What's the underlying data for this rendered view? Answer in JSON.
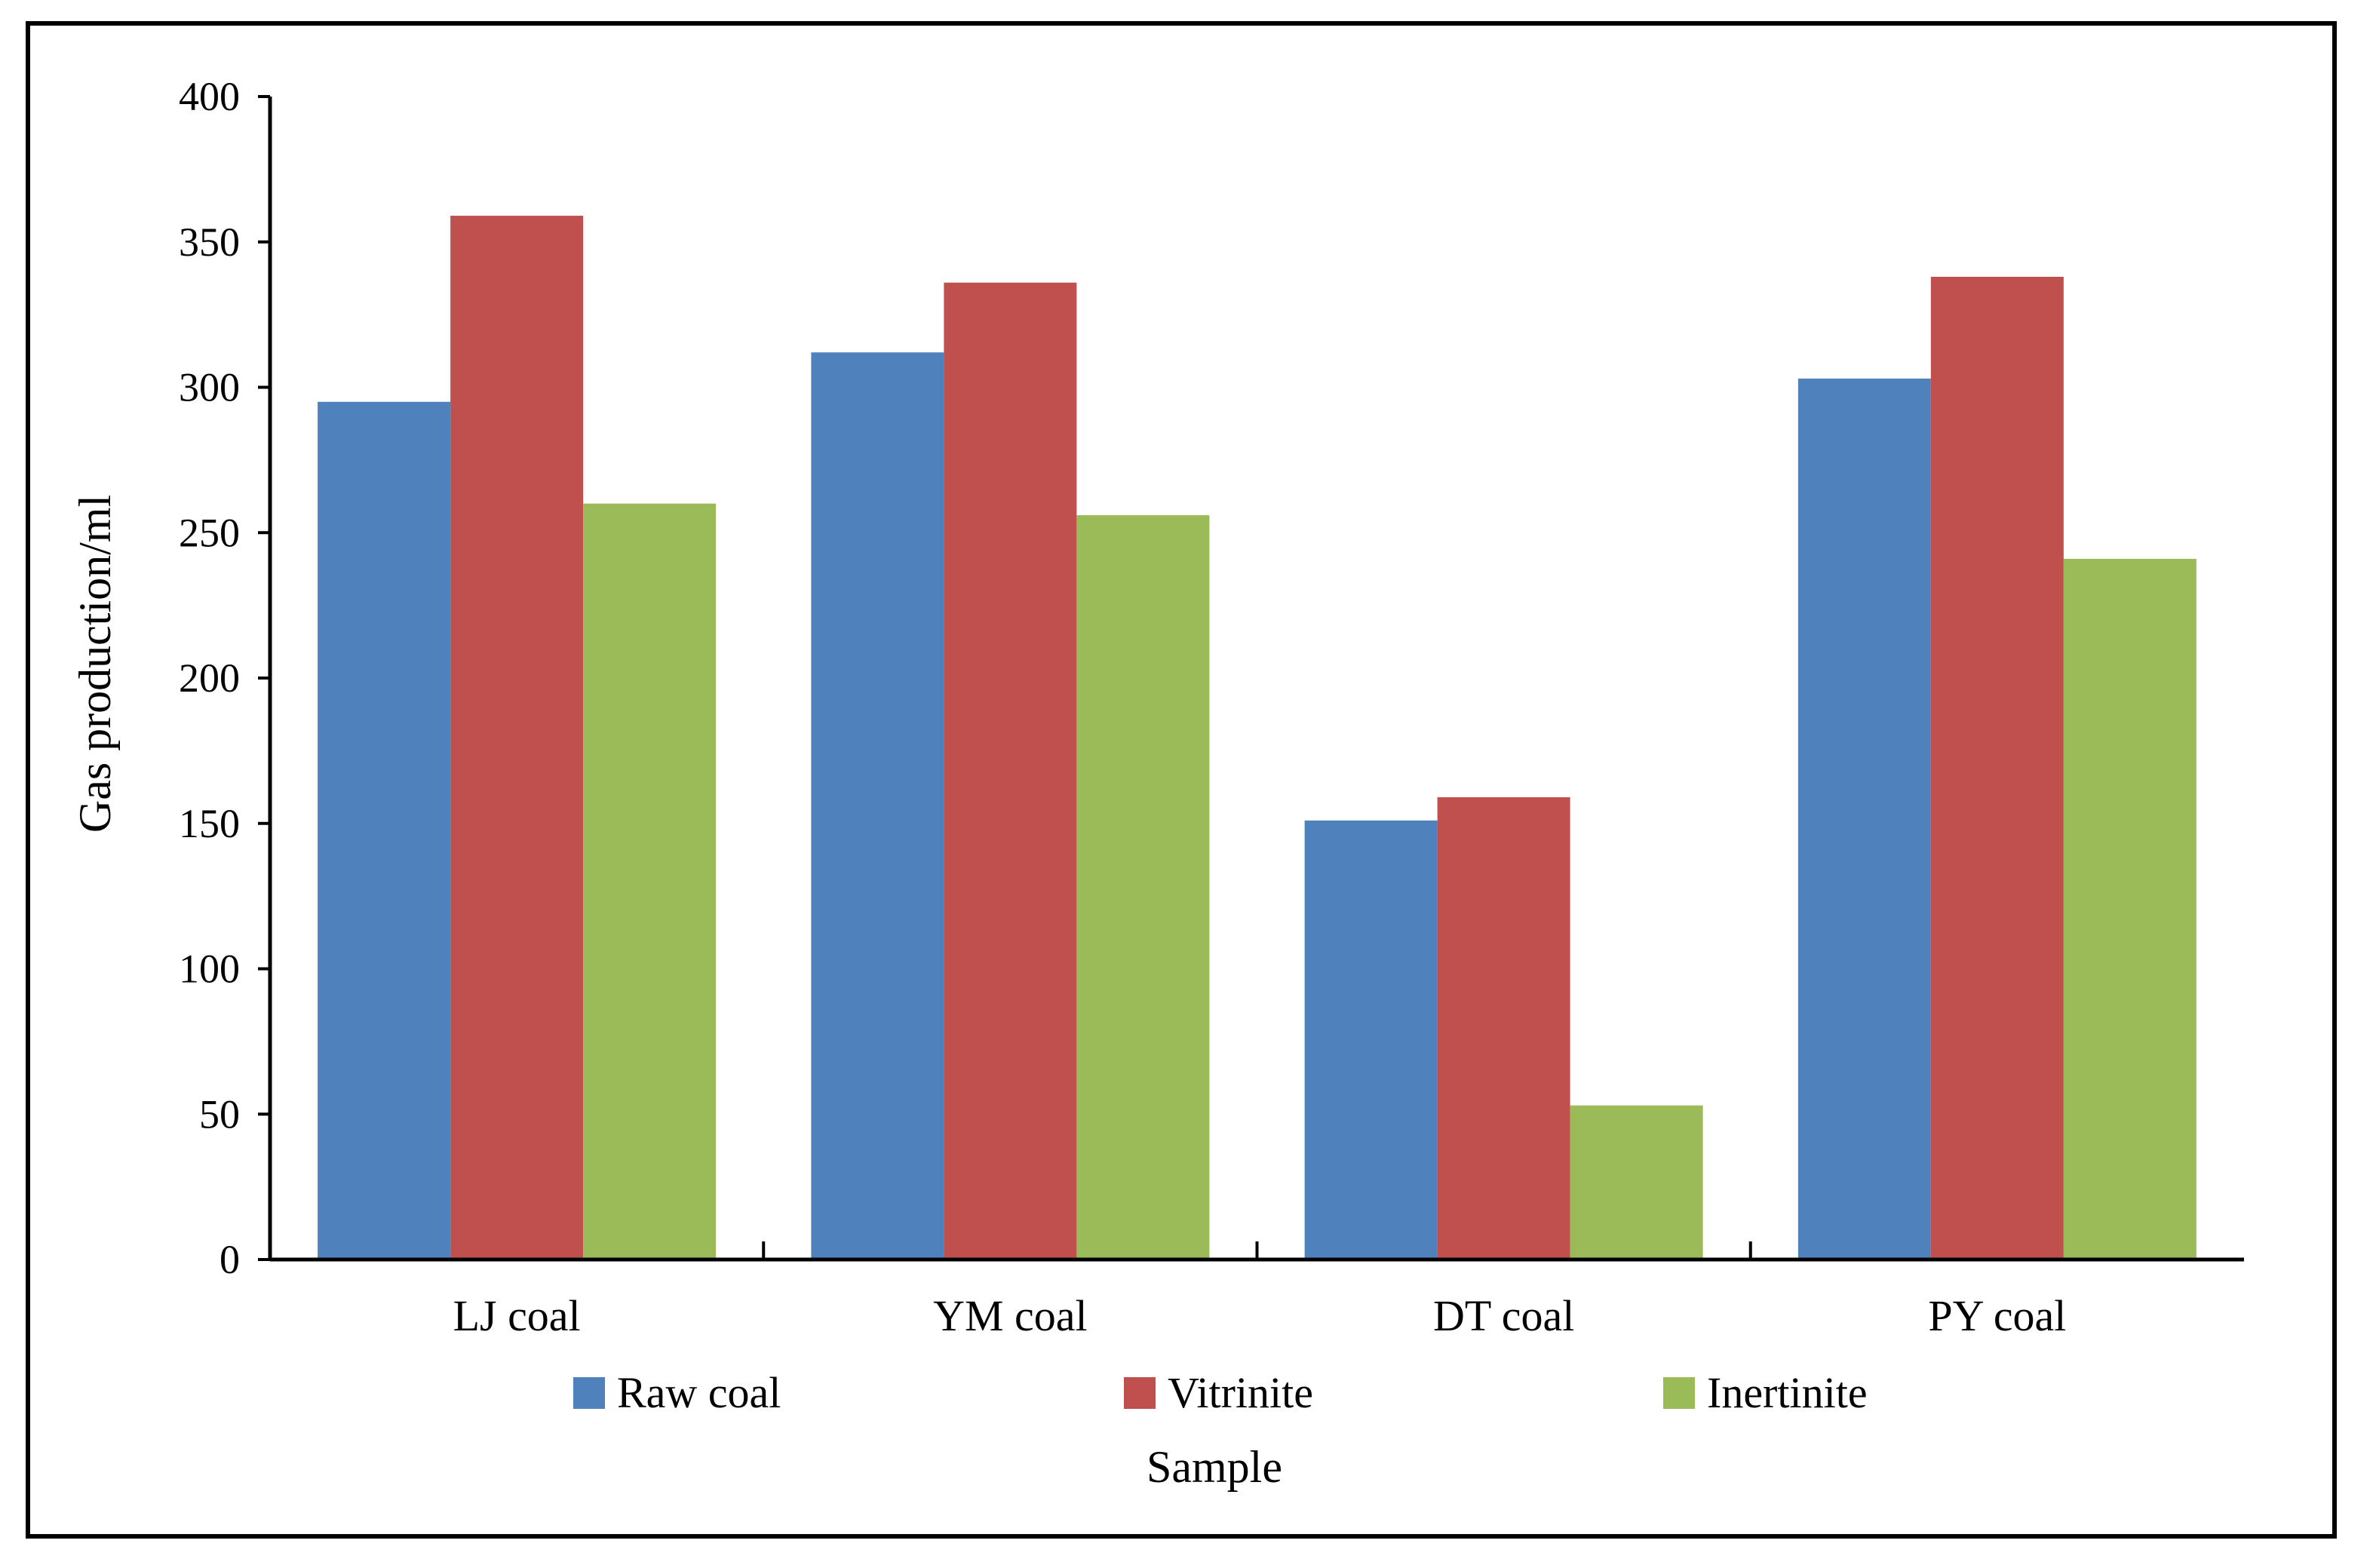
{
  "chart_data": {
    "type": "bar",
    "categories": [
      "LJ coal",
      "YM coal",
      "DT coal",
      "PY coal"
    ],
    "series": [
      {
        "name": "Raw coal",
        "color": "#4F81BD",
        "values": [
          295,
          312,
          151,
          303
        ]
      },
      {
        "name": "Vitrinite",
        "color": "#C0504D",
        "values": [
          359,
          336,
          159,
          338
        ]
      },
      {
        "name": "Inertinite",
        "color": "#9BBB59",
        "values": [
          260,
          256,
          53,
          241
        ]
      }
    ],
    "title": "",
    "xlabel": "Sample",
    "ylabel": "Gas production/ml",
    "ylim": [
      0,
      400
    ],
    "yticks": [
      "0",
      "50",
      "100",
      "150",
      "200",
      "250",
      "300",
      "350",
      "400"
    ],
    "grid": false,
    "legend_position": "bottom"
  }
}
